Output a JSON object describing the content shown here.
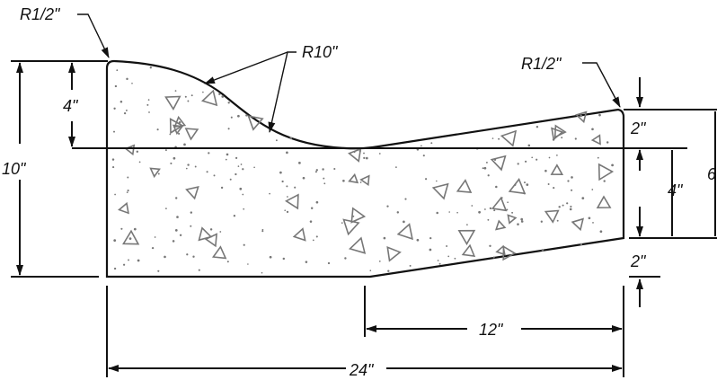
{
  "labels": {
    "radius_left": "R1/2\"",
    "radius_right": "R1/2\"",
    "radius_curve": "R10\"",
    "height_total": "10\"",
    "height_top": "4\"",
    "right_top_gap": "2\"",
    "right_mid": "4\"",
    "right_bottom_gap": "2\"",
    "right_overall": "6",
    "width_bottom": "12\"",
    "width_total": "24\""
  },
  "colors": {
    "line": "#111111",
    "fill_speck": "#777777",
    "background": "#ffffff"
  }
}
